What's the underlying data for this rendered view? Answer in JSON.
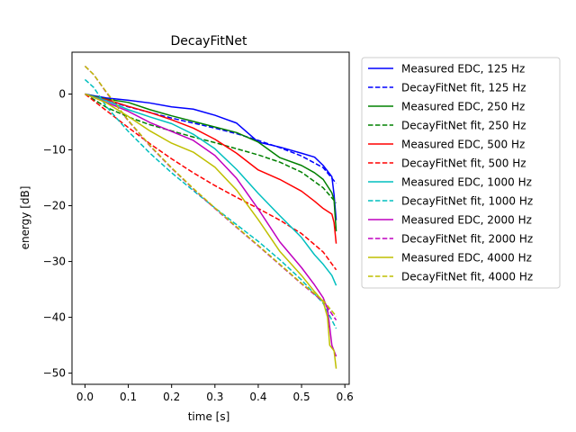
{
  "chart_data": {
    "type": "line",
    "title": "DecayFitNet",
    "xlabel": "time [s]",
    "ylabel": "energy [dB]",
    "xlim": [
      -0.03,
      0.61
    ],
    "ylim": [
      -52,
      7.5
    ],
    "xticks": [
      0.0,
      0.1,
      0.2,
      0.3,
      0.4,
      0.5,
      0.6
    ],
    "xtick_labels": [
      "0.0",
      "0.1",
      "0.2",
      "0.3",
      "0.4",
      "0.5",
      "0.6"
    ],
    "yticks": [
      0,
      -10,
      -20,
      -30,
      -40,
      -50
    ],
    "ytick_labels": [
      "0",
      "−10",
      "−20",
      "−30",
      "−40",
      "−50"
    ],
    "grid": false,
    "legend_position": "outside-right-top",
    "series": [
      {
        "name": "Measured EDC, 125 Hz",
        "color": "#0000ff",
        "style": "solid",
        "points": [
          [
            0,
            0
          ],
          [
            0.02,
            -0.3
          ],
          [
            0.05,
            -0.7
          ],
          [
            0.1,
            -1.1
          ],
          [
            0.15,
            -1.6
          ],
          [
            0.2,
            -2.3
          ],
          [
            0.25,
            -2.7
          ],
          [
            0.3,
            -3.8
          ],
          [
            0.35,
            -5.2
          ],
          [
            0.4,
            -8.6
          ],
          [
            0.45,
            -9.5
          ],
          [
            0.5,
            -10.6
          ],
          [
            0.53,
            -11.3
          ],
          [
            0.55,
            -12.8
          ],
          [
            0.57,
            -14.8
          ],
          [
            0.575,
            -18
          ],
          [
            0.58,
            -22.6
          ]
        ]
      },
      {
        "name": "DecayFitNet fit, 125 Hz",
        "color": "#0000ff",
        "style": "dashed",
        "points": [
          [
            0,
            0
          ],
          [
            0.05,
            -1.1
          ],
          [
            0.1,
            -2.3
          ],
          [
            0.15,
            -3.3
          ],
          [
            0.2,
            -4.3
          ],
          [
            0.25,
            -5.2
          ],
          [
            0.3,
            -6.1
          ],
          [
            0.35,
            -7.1
          ],
          [
            0.4,
            -8.3
          ],
          [
            0.45,
            -9.6
          ],
          [
            0.5,
            -11.1
          ],
          [
            0.55,
            -13.2
          ],
          [
            0.58,
            -16
          ]
        ]
      },
      {
        "name": "Measured EDC, 250 Hz",
        "color": "#008000",
        "style": "solid",
        "points": [
          [
            0,
            0
          ],
          [
            0.02,
            -0.4
          ],
          [
            0.05,
            -0.9
          ],
          [
            0.1,
            -1.5
          ],
          [
            0.15,
            -2.8
          ],
          [
            0.2,
            -3.9
          ],
          [
            0.25,
            -4.9
          ],
          [
            0.3,
            -5.9
          ],
          [
            0.35,
            -6.9
          ],
          [
            0.4,
            -8.6
          ],
          [
            0.45,
            -11.4
          ],
          [
            0.5,
            -12.8
          ],
          [
            0.53,
            -14.1
          ],
          [
            0.55,
            -15.3
          ],
          [
            0.57,
            -17.7
          ],
          [
            0.575,
            -19
          ],
          [
            0.58,
            -24.6
          ]
        ]
      },
      {
        "name": "DecayFitNet fit, 250 Hz",
        "color": "#008000",
        "style": "dashed",
        "points": [
          [
            0,
            0
          ],
          [
            0.05,
            -2.4
          ],
          [
            0.1,
            -4.1
          ],
          [
            0.15,
            -5.5
          ],
          [
            0.2,
            -6.6
          ],
          [
            0.25,
            -7.7
          ],
          [
            0.3,
            -8.7
          ],
          [
            0.35,
            -9.8
          ],
          [
            0.4,
            -10.9
          ],
          [
            0.45,
            -12.2
          ],
          [
            0.5,
            -14
          ],
          [
            0.55,
            -16.8
          ],
          [
            0.58,
            -19.5
          ]
        ]
      },
      {
        "name": "Measured EDC, 500 Hz",
        "color": "#ff0000",
        "style": "solid",
        "points": [
          [
            0,
            0
          ],
          [
            0.02,
            -0.5
          ],
          [
            0.05,
            -1
          ],
          [
            0.1,
            -2.2
          ],
          [
            0.15,
            -3.3
          ],
          [
            0.2,
            -4.6
          ],
          [
            0.25,
            -6.1
          ],
          [
            0.3,
            -8.1
          ],
          [
            0.35,
            -10.6
          ],
          [
            0.4,
            -13.6
          ],
          [
            0.45,
            -15.3
          ],
          [
            0.5,
            -17.4
          ],
          [
            0.53,
            -19.2
          ],
          [
            0.55,
            -20.5
          ],
          [
            0.57,
            -21.5
          ],
          [
            0.575,
            -23
          ],
          [
            0.58,
            -26.8
          ]
        ]
      },
      {
        "name": "DecayFitNet fit, 500 Hz",
        "color": "#ff0000",
        "style": "dashed",
        "points": [
          [
            0,
            0
          ],
          [
            0.05,
            -3
          ],
          [
            0.1,
            -6
          ],
          [
            0.15,
            -8.9
          ],
          [
            0.2,
            -11.6
          ],
          [
            0.25,
            -14.1
          ],
          [
            0.3,
            -16.4
          ],
          [
            0.35,
            -18.5
          ],
          [
            0.4,
            -20.5
          ],
          [
            0.45,
            -22.6
          ],
          [
            0.5,
            -25
          ],
          [
            0.55,
            -28.3
          ],
          [
            0.58,
            -31.5
          ]
        ]
      },
      {
        "name": "Measured EDC, 1000 Hz",
        "color": "#00bfbf",
        "style": "solid",
        "points": [
          [
            0,
            0
          ],
          [
            0.02,
            -0.5
          ],
          [
            0.05,
            -1.2
          ],
          [
            0.1,
            -2.8
          ],
          [
            0.15,
            -4.1
          ],
          [
            0.2,
            -5.3
          ],
          [
            0.25,
            -7.2
          ],
          [
            0.3,
            -9.8
          ],
          [
            0.35,
            -13.5
          ],
          [
            0.4,
            -17.8
          ],
          [
            0.45,
            -21.8
          ],
          [
            0.5,
            -25.7
          ],
          [
            0.53,
            -28.8
          ],
          [
            0.55,
            -30.5
          ],
          [
            0.57,
            -32.5
          ],
          [
            0.58,
            -34.3
          ]
        ]
      },
      {
        "name": "DecayFitNet fit, 1000 Hz",
        "color": "#00bfbf",
        "style": "dashed",
        "points": [
          [
            0,
            2.6
          ],
          [
            0.02,
            1.2
          ],
          [
            0.05,
            -2.3
          ],
          [
            0.1,
            -6.7
          ],
          [
            0.15,
            -10.6
          ],
          [
            0.2,
            -14.1
          ],
          [
            0.25,
            -17.3
          ],
          [
            0.3,
            -20.4
          ],
          [
            0.35,
            -23.4
          ],
          [
            0.4,
            -26.4
          ],
          [
            0.45,
            -29.7
          ],
          [
            0.5,
            -33.3
          ],
          [
            0.55,
            -37.5
          ],
          [
            0.58,
            -42
          ]
        ]
      },
      {
        "name": "Measured EDC, 2000 Hz",
        "color": "#bf00bf",
        "style": "solid",
        "points": [
          [
            0,
            0
          ],
          [
            0.02,
            -0.6
          ],
          [
            0.05,
            -1.5
          ],
          [
            0.1,
            -3.1
          ],
          [
            0.15,
            -5.1
          ],
          [
            0.2,
            -6.7
          ],
          [
            0.25,
            -8.3
          ],
          [
            0.3,
            -11
          ],
          [
            0.35,
            -15.1
          ],
          [
            0.4,
            -20.6
          ],
          [
            0.45,
            -26.5
          ],
          [
            0.5,
            -31.1
          ],
          [
            0.53,
            -34.2
          ],
          [
            0.55,
            -36.5
          ],
          [
            0.56,
            -38.5
          ],
          [
            0.57,
            -45
          ],
          [
            0.58,
            -47
          ]
        ]
      },
      {
        "name": "DecayFitNet fit, 2000 Hz",
        "color": "#bf00bf",
        "style": "dashed",
        "points": [
          [
            0,
            5
          ],
          [
            0.02,
            3.5
          ],
          [
            0.05,
            0.2
          ],
          [
            0.1,
            -4.8
          ],
          [
            0.15,
            -9.3
          ],
          [
            0.2,
            -13.3
          ],
          [
            0.25,
            -17
          ],
          [
            0.3,
            -20.5
          ],
          [
            0.35,
            -23.9
          ],
          [
            0.4,
            -27.2
          ],
          [
            0.45,
            -30.6
          ],
          [
            0.5,
            -34
          ],
          [
            0.55,
            -37.2
          ],
          [
            0.58,
            -40.5
          ]
        ]
      },
      {
        "name": "Measured EDC, 4000 Hz",
        "color": "#bfbf00",
        "style": "solid",
        "points": [
          [
            0,
            0
          ],
          [
            0.02,
            -0.6
          ],
          [
            0.05,
            -1.6
          ],
          [
            0.1,
            -4
          ],
          [
            0.15,
            -6.6
          ],
          [
            0.2,
            -8.8
          ],
          [
            0.25,
            -10.4
          ],
          [
            0.3,
            -13.1
          ],
          [
            0.35,
            -17.2
          ],
          [
            0.4,
            -22.5
          ],
          [
            0.45,
            -28.2
          ],
          [
            0.5,
            -32.5
          ],
          [
            0.53,
            -35.4
          ],
          [
            0.55,
            -37.2
          ],
          [
            0.56,
            -40
          ],
          [
            0.565,
            -45
          ],
          [
            0.575,
            -46
          ],
          [
            0.58,
            -49.2
          ]
        ]
      },
      {
        "name": "DecayFitNet fit, 4000 Hz",
        "color": "#bfbf00",
        "style": "dashed",
        "points": [
          [
            0,
            5
          ],
          [
            0.02,
            3.5
          ],
          [
            0.05,
            0.3
          ],
          [
            0.1,
            -4.7
          ],
          [
            0.15,
            -9.2
          ],
          [
            0.2,
            -13.2
          ],
          [
            0.25,
            -16.9
          ],
          [
            0.3,
            -20.4
          ],
          [
            0.35,
            -23.8
          ],
          [
            0.4,
            -27.1
          ],
          [
            0.45,
            -30.5
          ],
          [
            0.5,
            -33.9
          ],
          [
            0.55,
            -37
          ],
          [
            0.58,
            -39.8
          ]
        ]
      }
    ]
  }
}
